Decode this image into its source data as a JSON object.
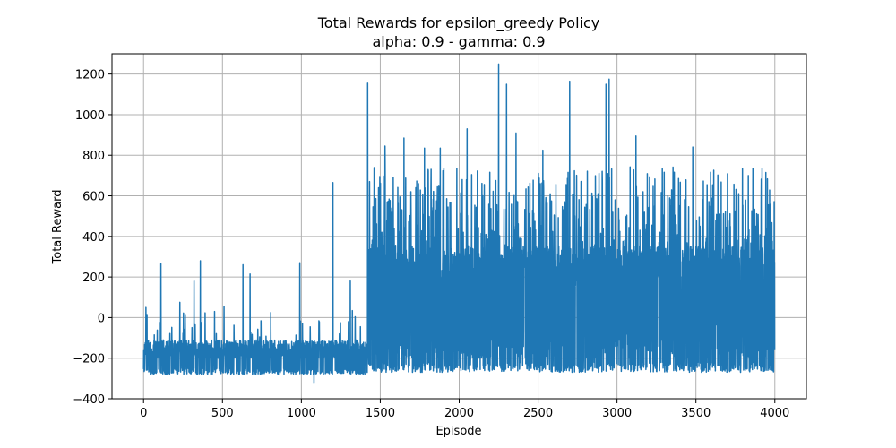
{
  "chart_data": {
    "type": "line",
    "title": "Total Rewards for epsilon_greedy Policy",
    "subtitle": "alpha: 0.9 - gamma: 0.9",
    "xlabel": "Episode",
    "ylabel": "Total Reward",
    "xlim": [
      -200,
      4200
    ],
    "ylim": [
      -400,
      1300
    ],
    "xticks": [
      0,
      500,
      1000,
      1500,
      2000,
      2500,
      3000,
      3500,
      4000
    ],
    "yticks": [
      -400,
      -200,
      0,
      200,
      400,
      600,
      800,
      1000,
      1200
    ],
    "grid": true,
    "series_color": "#1f77b4",
    "episodes": 4000,
    "phases": [
      {
        "from": 0,
        "to": 1420,
        "floor": [
          -280,
          -250
        ],
        "baseline": [
          -200,
          -110
        ],
        "max_typical": 35
      },
      {
        "from": 1420,
        "to": 4000,
        "floor": [
          -270,
          -220
        ],
        "baseline": [
          -200,
          -110
        ],
        "max_typical": 745
      }
    ],
    "peaks": [
      {
        "x": 15,
        "y": 50
      },
      {
        "x": 110,
        "y": 265
      },
      {
        "x": 230,
        "y": 75
      },
      {
        "x": 320,
        "y": 180
      },
      {
        "x": 360,
        "y": 280
      },
      {
        "x": 450,
        "y": 30
      },
      {
        "x": 510,
        "y": 55
      },
      {
        "x": 630,
        "y": 260
      },
      {
        "x": 675,
        "y": 215
      },
      {
        "x": 990,
        "y": 270
      },
      {
        "x": 1200,
        "y": 665
      },
      {
        "x": 1310,
        "y": 180
      },
      {
        "x": 1420,
        "y": 1155
      },
      {
        "x": 1530,
        "y": 845
      },
      {
        "x": 1650,
        "y": 885
      },
      {
        "x": 1780,
        "y": 835
      },
      {
        "x": 1880,
        "y": 835
      },
      {
        "x": 2050,
        "y": 930
      },
      {
        "x": 2250,
        "y": 1250
      },
      {
        "x": 2300,
        "y": 1150
      },
      {
        "x": 2360,
        "y": 910
      },
      {
        "x": 2530,
        "y": 825
      },
      {
        "x": 2700,
        "y": 1165
      },
      {
        "x": 2930,
        "y": 1150
      },
      {
        "x": 2950,
        "y": 1175
      },
      {
        "x": 3120,
        "y": 895
      },
      {
        "x": 3480,
        "y": 840
      }
    ],
    "minimum": {
      "x": 1080,
      "y": -325
    }
  }
}
